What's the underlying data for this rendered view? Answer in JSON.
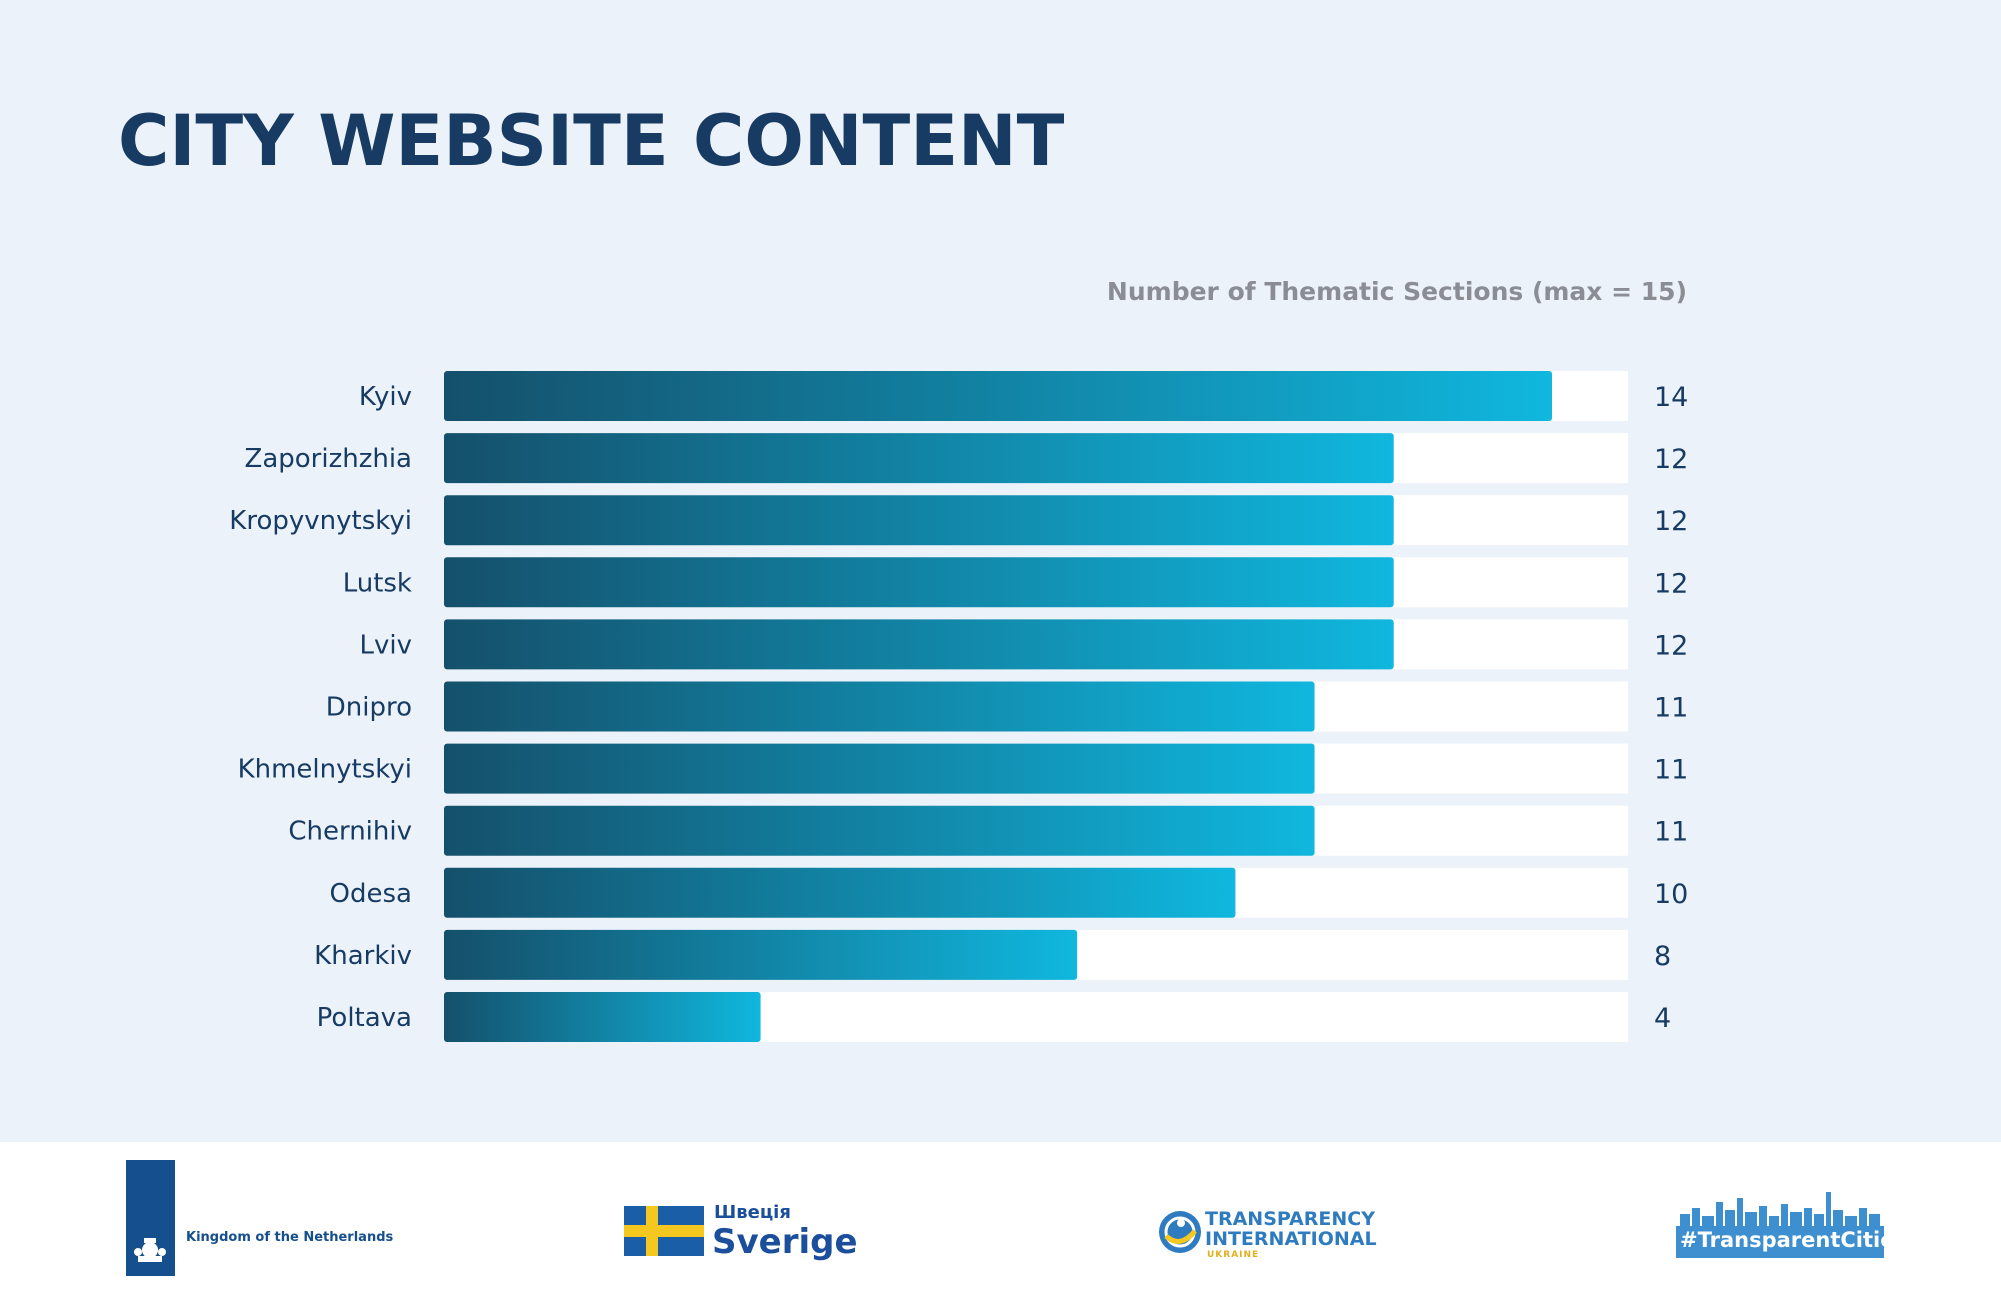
{
  "title": "CITY WEBSITE CONTENT",
  "subtitle": "Number of Thematic Sections (max = 15)",
  "colors": {
    "background": "#ecf2f9",
    "title": "#173b63",
    "bar_dark": "#14506b",
    "bar_light": "#10b7de",
    "track": "#ffffff"
  },
  "chart_data": {
    "type": "bar",
    "orientation": "horizontal",
    "categories": [
      "Kyiv",
      "Zaporizhzhia",
      "Kropyvnytskyi",
      "Lutsk",
      "Lviv",
      "Dnipro",
      "Khmelnytskyi",
      "Chernihiv",
      "Odesa",
      "Kharkiv",
      "Poltava"
    ],
    "values": [
      14,
      12,
      12,
      12,
      12,
      11,
      11,
      11,
      10,
      8,
      4
    ],
    "xlim": [
      0,
      15
    ],
    "grid": false,
    "legend": "none"
  },
  "footer": {
    "netherlands": "Kingdom of the Netherlands",
    "sweden_small": "Швеція",
    "sweden_big": "Sverige",
    "ti_line1": "TRANSPARENCY",
    "ti_line2": "INTERNATIONAL",
    "ti_line3": "UKRAINE",
    "transparent_cities": "#TransparentCities"
  }
}
